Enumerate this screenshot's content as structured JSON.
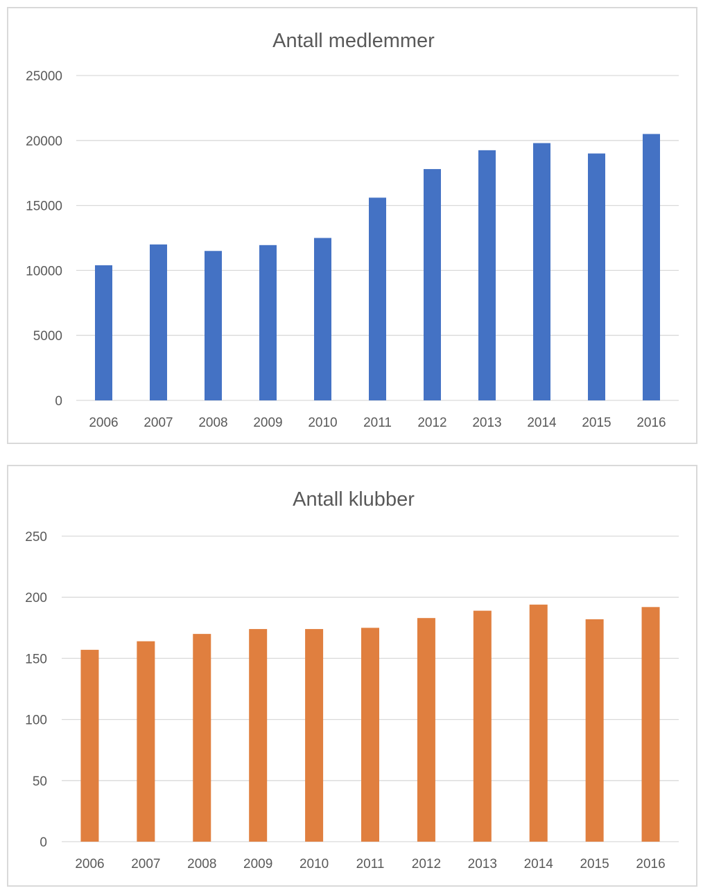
{
  "chart_data": [
    {
      "type": "bar",
      "title": "Antall medlemmer",
      "categories": [
        "2006",
        "2007",
        "2008",
        "2009",
        "2010",
        "2011",
        "2012",
        "2013",
        "2014",
        "2015",
        "2016"
      ],
      "values": [
        10400,
        12000,
        11500,
        11950,
        12500,
        15600,
        17800,
        19250,
        19800,
        19000,
        20500
      ],
      "ylim": [
        0,
        25000
      ],
      "yticks": [
        "0",
        "5000",
        "10000",
        "15000",
        "20000",
        "25000"
      ],
      "grid": true,
      "color": "#4472c4"
    },
    {
      "type": "bar",
      "title": "Antall klubber",
      "categories": [
        "2006",
        "2007",
        "2008",
        "2009",
        "2010",
        "2011",
        "2012",
        "2013",
        "2014",
        "2015",
        "2016"
      ],
      "values": [
        157,
        164,
        170,
        174,
        174,
        175,
        183,
        189,
        194,
        182,
        192
      ],
      "ylim": [
        0,
        250
      ],
      "yticks": [
        "0",
        "50",
        "100",
        "150",
        "200",
        "250"
      ],
      "grid": true,
      "color": "#e07f3f"
    }
  ]
}
